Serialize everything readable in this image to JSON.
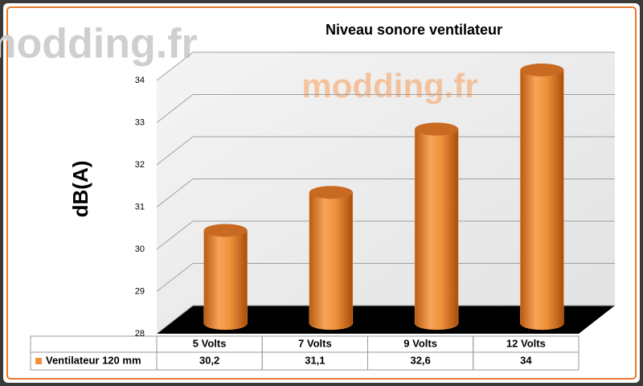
{
  "chart_data": {
    "type": "bar",
    "title": "Niveau sonore ventilateur",
    "y_label": "dB(A)",
    "watermark": "modding.fr",
    "categories": [
      "5 Volts",
      "7 Volts",
      "9 Volts",
      "12 Volts"
    ],
    "series": [
      {
        "name": "Ventilateur 120 mm",
        "color": "#f0923a",
        "values": [
          30.2,
          31.1,
          32.6,
          34
        ],
        "value_labels": [
          "30,2",
          "31,1",
          "32,6",
          "34"
        ]
      }
    ],
    "ylim": [
      28,
      34
    ],
    "yticks": [
      28,
      29,
      30,
      31,
      32,
      33,
      34
    ],
    "grid": true
  }
}
